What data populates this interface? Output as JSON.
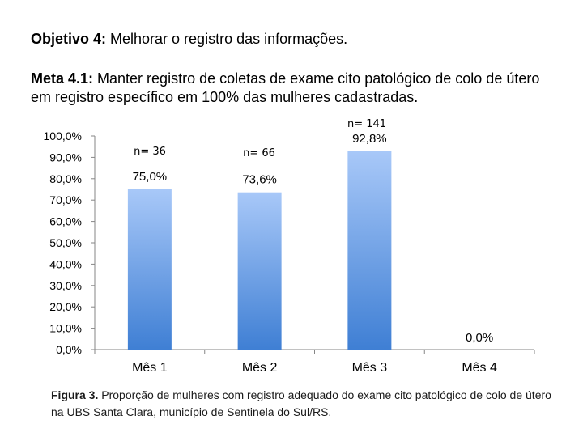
{
  "header": {
    "objective_label": "Objetivo 4:",
    "objective_text": " Melhorar o registro das informações.",
    "meta_label": "Meta 4.1:",
    "meta_text": " Manter registro de coletas de exame cito patológico de colo de útero em registro específico em 100% das mulheres cadastradas."
  },
  "chart_data": {
    "type": "bar",
    "categories": [
      "Mês 1",
      "Mês 2",
      "Mês 3",
      "Mês 4"
    ],
    "values": [
      75.0,
      73.6,
      92.8,
      0.0
    ],
    "value_labels": [
      "75,0%",
      "73,6%",
      "92,8%",
      "0,0%"
    ],
    "n_labels": [
      "n= 36",
      "n= 66",
      "n= 141",
      ""
    ],
    "yticks": [
      "0,0%",
      "10,0%",
      "20,0%",
      "30,0%",
      "40,0%",
      "50,0%",
      "60,0%",
      "70,0%",
      "80,0%",
      "90,0%",
      "100,0%"
    ],
    "ylim": [
      0,
      100
    ],
    "grid": false,
    "bar_color_top": "#a8c8f8",
    "bar_color_bottom": "#3f7fd4"
  },
  "caption": {
    "label": "Figura 3.",
    "text": " Proporção de mulheres com registro adequado do exame cito patológico de colo de útero na UBS Santa Clara, município de Sentinela do Sul/RS."
  }
}
